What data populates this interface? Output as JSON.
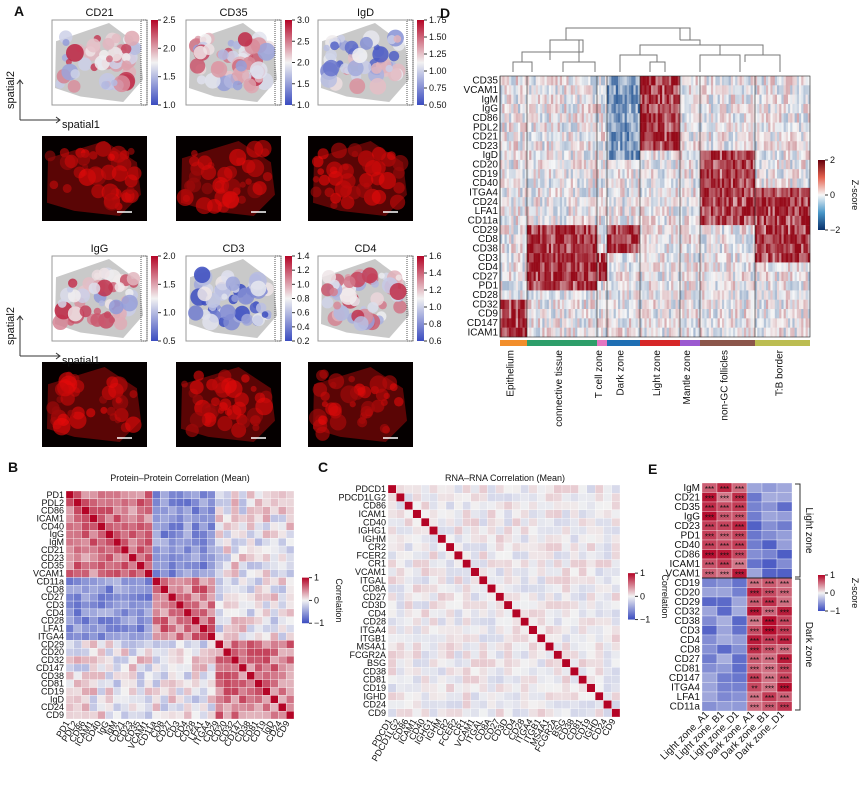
{
  "panel_a": {
    "label": "A",
    "axis_y": "spatial2",
    "axis_x": "spatial1",
    "maps": [
      {
        "title": "CD21",
        "ticks": [
          "2.5",
          "2.0",
          "1.5",
          "1.0"
        ]
      },
      {
        "title": "CD35",
        "ticks": [
          "3.0",
          "2.5",
          "2.0",
          "1.5",
          "1.0"
        ]
      },
      {
        "title": "IgD",
        "ticks": [
          "1.75",
          "1.50",
          "1.25",
          "1.00",
          "0.75",
          "0.50"
        ]
      },
      {
        "title": "IgG",
        "ticks": [
          "2.0",
          "1.5",
          "1.0",
          "0.5"
        ]
      },
      {
        "title": "CD3",
        "ticks": [
          "1.4",
          "1.2",
          "1.0",
          "0.8",
          "0.6",
          "0.4",
          "0.2"
        ]
      },
      {
        "title": "CD4",
        "ticks": [
          "1.6",
          "1.4",
          "1.2",
          "1.0",
          "0.8",
          "0.6"
        ]
      }
    ]
  },
  "panel_b": {
    "label": "B",
    "title": "Protein–Protein Correlation (Mean)",
    "cbar_label": "Correlation",
    "cbar_ticks": [
      "1",
      "0",
      "−1"
    ],
    "rows": [
      "PD1",
      "PDL2",
      "CD86",
      "ICAM1",
      "CD40",
      "IgG",
      "IgM",
      "CD21",
      "CD23",
      "CD35",
      "VCAM1",
      "CD11a",
      "CD8",
      "CD27",
      "CD3",
      "CD4",
      "CD28",
      "LFA1",
      "ITGA4",
      "CD29",
      "CD20",
      "CD32",
      "CD147",
      "CD38",
      "CD81",
      "CD19",
      "IgD",
      "CD24",
      "CD9"
    ]
  },
  "panel_c": {
    "label": "C",
    "title": "RNA–RNA Correlation (Mean)",
    "cbar_label": "Correlation",
    "cbar_ticks": [
      "1",
      "0",
      "−1"
    ],
    "rows": [
      "PDCD1",
      "PDCD1LG2",
      "CD86",
      "ICAM1",
      "CD40",
      "IGHG1",
      "IGHM",
      "CR2",
      "FCER2",
      "CR1",
      "VCAM1",
      "ITGAL",
      "CD8A",
      "CD27",
      "CD3D",
      "CD4",
      "CD28",
      "ITGA4",
      "ITGB1",
      "MS4A1",
      "FCGR2A",
      "BSG",
      "CD38",
      "CD81",
      "CD19",
      "IGHD",
      "CD24",
      "CD9"
    ]
  },
  "panel_d": {
    "label": "D",
    "cbar_label": "Z-score",
    "cbar_ticks": [
      "2",
      "0",
      "−2"
    ],
    "rows": [
      "CD35",
      "VCAM1",
      "IgM",
      "IgG",
      "CD86",
      "PDL2",
      "CD21",
      "CD23",
      "IgD",
      "CD20",
      "CD19",
      "CD40",
      "ITGA4",
      "CD24",
      "LFA1",
      "CD11a",
      "CD29",
      "CD8",
      "CD38",
      "CD3",
      "CD4",
      "CD27",
      "PD1",
      "CD28",
      "CD32",
      "CD9",
      "CD147",
      "ICAM1"
    ],
    "groups": [
      {
        "name": "Epithelium",
        "color": "#f28e2b"
      },
      {
        "name": "connective tissue",
        "color": "#2e9e6a"
      },
      {
        "name": "T cell zone",
        "color": "#e377c2"
      },
      {
        "name": "Dark zone",
        "color": "#1f6fb4"
      },
      {
        "name": "Light zone",
        "color": "#d62728"
      },
      {
        "name": "Mantle zone",
        "color": "#9b59d0"
      },
      {
        "name": "non-GC follicles",
        "color": "#8c564b"
      },
      {
        "name": "T:B border",
        "color": "#bcbd52"
      }
    ]
  },
  "panel_e": {
    "label": "E",
    "cbar_label": "Z-score",
    "cbar_ticks": [
      "1",
      "0",
      "−1"
    ],
    "side_labels": [
      "Light zone",
      "Dark zone"
    ],
    "cols": [
      "Light zone_A1",
      "Light zone_B1",
      "Light zone_D1",
      "Dark zone_A1",
      "Dark zone_B1",
      "Dark zone_D1"
    ],
    "rows": [
      "IgM",
      "CD21",
      "CD35",
      "IgG",
      "CD23",
      "PD1",
      "CD40",
      "CD86",
      "ICAM1",
      "VCAM1",
      "CD19",
      "CD20",
      "CD29",
      "CD32",
      "CD38",
      "CD3",
      "CD4",
      "CD8",
      "CD27",
      "CD81",
      "CD147",
      "ITGA4",
      "LFA1",
      "CD11a"
    ],
    "stars": [
      [
        "***",
        "***",
        "***",
        "",
        "",
        ""
      ],
      [
        "***",
        "***",
        "***",
        "",
        "",
        ""
      ],
      [
        "***",
        "***",
        "***",
        "",
        "",
        ""
      ],
      [
        "***",
        "***",
        "***",
        "",
        "",
        ""
      ],
      [
        "***",
        "***",
        "***",
        "",
        "",
        ""
      ],
      [
        "***",
        "***",
        "***",
        "",
        "",
        ""
      ],
      [
        "***",
        "***",
        "***",
        "",
        "",
        ""
      ],
      [
        "***",
        "***",
        "***",
        "",
        "",
        ""
      ],
      [
        "***",
        "***",
        "***",
        "",
        "",
        ""
      ],
      [
        "***",
        "***",
        "***",
        "",
        "",
        ""
      ],
      [
        "",
        "",
        "",
        "***",
        "***",
        "***"
      ],
      [
        "",
        "",
        "",
        "***",
        "***",
        "***"
      ],
      [
        "",
        "",
        "",
        "***",
        "***",
        "***"
      ],
      [
        "",
        "",
        "",
        "***",
        "***",
        "***"
      ],
      [
        "",
        "",
        "",
        "***",
        "***",
        "***"
      ],
      [
        "",
        "",
        "",
        "***",
        "***",
        "***"
      ],
      [
        "",
        "",
        "",
        "***",
        "***",
        "***"
      ],
      [
        "",
        "",
        "",
        "***",
        "***",
        "***"
      ],
      [
        "",
        "",
        "",
        "***",
        "***",
        "***"
      ],
      [
        "",
        "",
        "",
        "***",
        "***",
        "***"
      ],
      [
        "",
        "",
        "",
        "***",
        "***",
        "***"
      ],
      [
        "",
        "",
        "",
        "**",
        "***",
        "***"
      ],
      [
        "",
        "",
        "",
        "***",
        "***",
        "***"
      ],
      [
        "",
        "",
        "",
        "***",
        "***",
        "***"
      ]
    ]
  }
}
